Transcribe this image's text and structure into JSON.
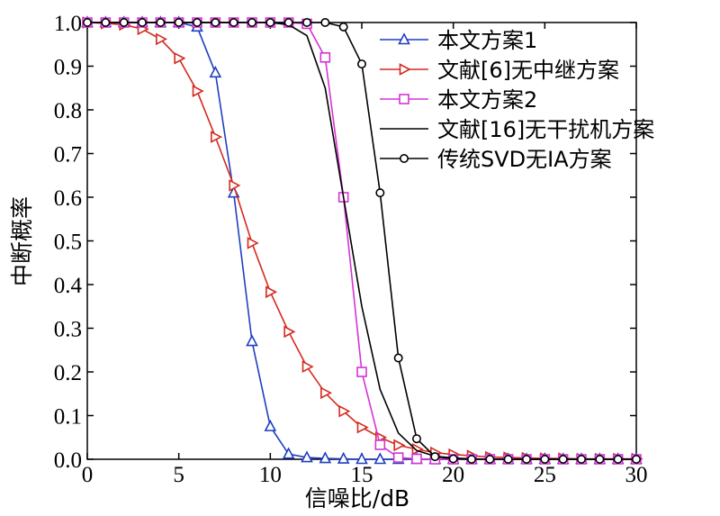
{
  "chart_data": {
    "type": "line",
    "title": "",
    "xlabel": "信噪比/dB",
    "ylabel": "中断概率",
    "xlim": [
      0,
      30
    ],
    "ylim": [
      0,
      1.0
    ],
    "xticks": [
      "0",
      "5",
      "10",
      "15",
      "20",
      "25",
      "30"
    ],
    "yticks": [
      "0.0",
      "0.1",
      "0.2",
      "0.3",
      "0.4",
      "0.5",
      "0.6",
      "0.7",
      "0.8",
      "0.9",
      "1.0"
    ],
    "grid": false,
    "legend_position": "top-right",
    "x": [
      0,
      1,
      2,
      3,
      4,
      5,
      6,
      7,
      8,
      9,
      10,
      11,
      12,
      13,
      14,
      15,
      16,
      17,
      18,
      19,
      20,
      21,
      22,
      23,
      24,
      25,
      26,
      27,
      28,
      29,
      30
    ],
    "series": [
      {
        "name": "本文方案1",
        "color": "#1f3fbf",
        "marker": "triangle-up",
        "values": [
          1.0,
          1.0,
          1.0,
          1.0,
          1.0,
          1.0,
          0.99,
          0.885,
          0.61,
          0.27,
          0.075,
          0.012,
          0.004,
          0.002,
          0.001,
          0.0,
          0.0,
          0.0,
          0.0,
          0.0,
          0.0,
          0.0,
          0.0,
          0.0,
          0.0,
          0.0,
          0.0,
          0.0,
          0.0,
          0.0,
          0.0
        ]
      },
      {
        "name": "文献[6]无中继方案",
        "color": "#d42a1f",
        "marker": "triangle-right",
        "values": [
          1.0,
          0.998,
          0.995,
          0.985,
          0.962,
          0.918,
          0.843,
          0.738,
          0.627,
          0.495,
          0.383,
          0.292,
          0.212,
          0.152,
          0.11,
          0.073,
          0.05,
          0.032,
          0.023,
          0.015,
          0.011,
          0.008,
          0.005,
          0.004,
          0.003,
          0.002,
          0.002,
          0.001,
          0.001,
          0.001,
          0.001
        ]
      },
      {
        "name": "本文方案2",
        "color": "#d633d6",
        "marker": "square",
        "values": [
          1.0,
          1.0,
          1.0,
          1.0,
          1.0,
          1.0,
          1.0,
          1.0,
          1.0,
          1.0,
          1.0,
          1.0,
          0.997,
          0.92,
          0.6,
          0.2,
          0.033,
          0.004,
          0.001,
          0.0,
          0.0,
          0.0,
          0.0,
          0.0,
          0.0,
          0.0,
          0.0,
          0.0,
          0.0,
          0.0,
          0.0
        ]
      },
      {
        "name": "文献[16]无干扰机方案",
        "color": "#000000",
        "marker": "none",
        "values": [
          1.0,
          1.0,
          1.0,
          1.0,
          1.0,
          1.0,
          1.0,
          1.0,
          1.0,
          1.0,
          1.0,
          0.995,
          0.97,
          0.85,
          0.6,
          0.35,
          0.16,
          0.06,
          0.02,
          0.007,
          0.003,
          0.001,
          0.0,
          0.0,
          0.0,
          0.0,
          0.0,
          0.0,
          0.0,
          0.0,
          0.0
        ]
      },
      {
        "name": "传统SVD无IA方案",
        "color": "#000000",
        "marker": "circle",
        "values": [
          1.0,
          1.0,
          1.0,
          1.0,
          1.0,
          1.0,
          1.0,
          1.0,
          1.0,
          1.0,
          1.0,
          1.0,
          1.0,
          1.0,
          0.99,
          0.905,
          0.61,
          0.232,
          0.047,
          0.006,
          0.001,
          0.0,
          0.0,
          0.0,
          0.0,
          0.0,
          0.0,
          0.0,
          0.0,
          0.0,
          0.0
        ]
      }
    ]
  }
}
